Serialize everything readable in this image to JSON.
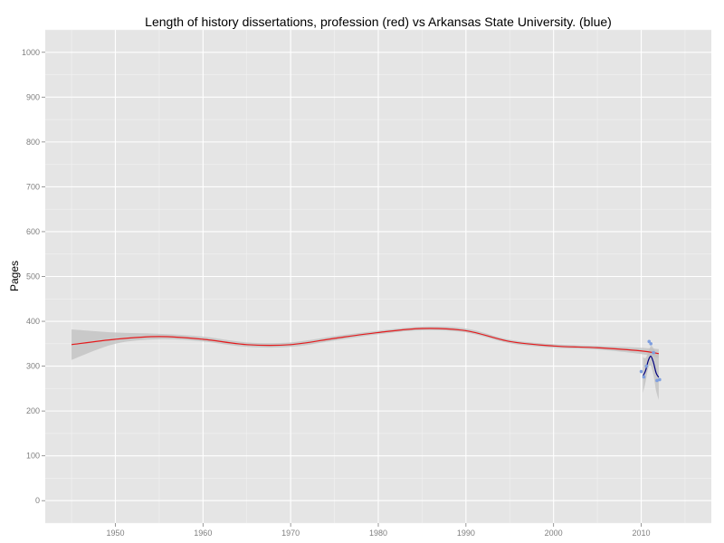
{
  "chart_data": {
    "type": "line",
    "title": "Length of history dissertations, profession (red) vs Arkansas State University. (blue)",
    "xlabel": "",
    "ylabel": "Pages",
    "xlim": [
      1942,
      2018
    ],
    "ylim": [
      -50,
      1050
    ],
    "x_ticks": [
      "1950",
      "1960",
      "1970",
      "1980",
      "1990",
      "2000",
      "2010"
    ],
    "y_ticks": [
      "0",
      "100",
      "200",
      "300",
      "400",
      "500",
      "600",
      "700",
      "800",
      "900",
      "1000"
    ],
    "grid": true,
    "legend": "none",
    "colors": {
      "panel": "#e5e5e5",
      "grid_major": "#ffffff",
      "grid_minor": "#f2f2f2",
      "ribbon": "#bfbfbf",
      "profession": "#e41a1c",
      "arkansas": "#00007f",
      "arkansas_points": "#7f9fdf"
    },
    "series": [
      {
        "color": "#e41a1c",
        "x": [
          1945,
          1950,
          1955,
          1960,
          1965,
          1970,
          1975,
          1980,
          1985,
          1990,
          1995,
          2000,
          2005,
          2010,
          2012
        ],
        "y": [
          348,
          360,
          366,
          360,
          348,
          348,
          362,
          375,
          384,
          379,
          355,
          345,
          341,
          334,
          328
        ],
        "ci_low": [
          314,
          350,
          360,
          355,
          343,
          343,
          357,
          371,
          380,
          375,
          351,
          341,
          337,
          327,
          318
        ],
        "ci_high": [
          382,
          375,
          372,
          366,
          353,
          353,
          367,
          379,
          388,
          384,
          359,
          349,
          345,
          341,
          338
        ]
      },
      {
        "color": "#00007f",
        "x": [
          2010.2,
          2010.5,
          2010.8,
          2011.1,
          2011.4,
          2011.7,
          2012
        ],
        "y": [
          278,
          290,
          312,
          322,
          308,
          285,
          275
        ],
        "ci_low": [
          240,
          265,
          295,
          300,
          280,
          245,
          225
        ],
        "ci_high": [
          320,
          318,
          330,
          345,
          340,
          330,
          326
        ]
      }
    ],
    "points": {
      "color": "#7f9fdf",
      "x": [
        2010,
        2010.3,
        2010.6,
        2010.9,
        2011.1,
        2011.4,
        2011.8,
        2012.1
      ],
      "y": [
        288,
        276,
        300,
        355,
        350,
        330,
        268,
        270
      ]
    }
  }
}
